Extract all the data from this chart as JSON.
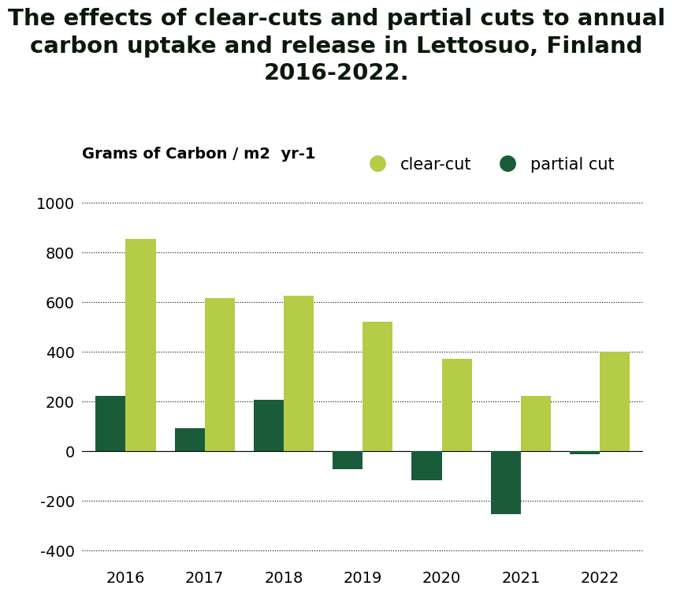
{
  "title": "The effects of clear-cuts and partial cuts to annual\ncarbon uptake and release in Lettosuo, Finland\n2016-2022.",
  "ylabel": "Grams of Carbon / m2  yr-1",
  "years": [
    2016,
    2017,
    2018,
    2019,
    2020,
    2021,
    2022
  ],
  "clear_cut": [
    855,
    615,
    625,
    520,
    370,
    220,
    400
  ],
  "partial_cut": [
    220,
    90,
    205,
    -75,
    -120,
    -255,
    -15
  ],
  "clear_cut_color": "#b5cc47",
  "partial_cut_color": "#1a5c3a",
  "background_color": "#ffffff",
  "title_color": "#0a1a0a",
  "ylim": [
    -450,
    1050
  ],
  "yticks": [
    -400,
    -200,
    0,
    200,
    400,
    600,
    800,
    1000
  ],
  "bar_width": 0.38,
  "title_fontsize": 21,
  "legend_fontsize": 15,
  "ylabel_fontsize": 14,
  "tick_fontsize": 14
}
